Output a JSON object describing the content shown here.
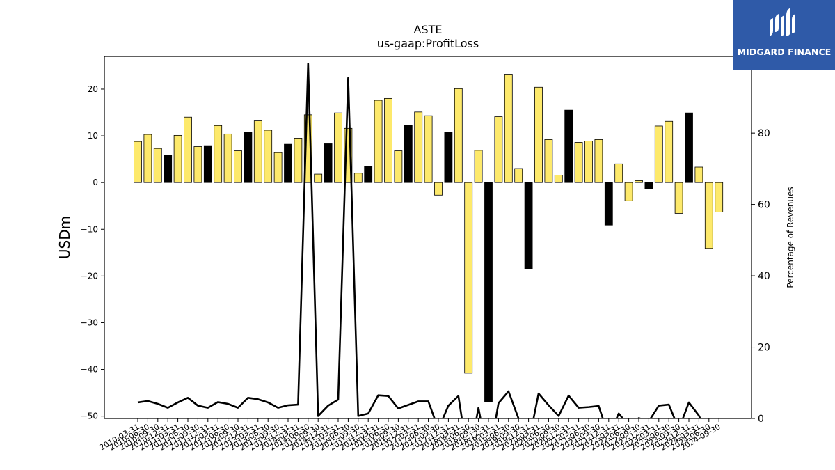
{
  "chart_data": {
    "type": "bar",
    "title": "ASTE",
    "subtitle": "us-gaap:ProfitLoss",
    "ylabel": "USDm",
    "y2label": "Percentage of Revenues",
    "ylim": [
      -50.5,
      27
    ],
    "y2lim": [
      0,
      101.5
    ],
    "yticks": [
      20,
      10,
      0,
      -10,
      -20,
      -30,
      -40,
      -50
    ],
    "y2ticks": [
      0,
      20,
      40,
      60,
      80,
      100
    ],
    "categories": [
      "2010-03-31",
      "2010-06-30",
      "2010-09-30",
      "2010-12-31",
      "2011-03-31",
      "2011-06-30",
      "2011-09-30",
      "2011-12-31",
      "2012-03-31",
      "2012-06-30",
      "2012-09-30",
      "2012-12-31",
      "2013-03-31",
      "2013-06-30",
      "2013-09-30",
      "2013-12-31",
      "2014-03-31",
      "2014-06-30",
      "2014-09-30",
      "2014-12-31",
      "2015-03-31",
      "2015-06-30",
      "2015-09-30",
      "2015-12-31",
      "2016-03-31",
      "2016-06-30",
      "2016-09-30",
      "2016-12-31",
      "2017-03-31",
      "2017-06-30",
      "2017-09-30",
      "2017-12-31",
      "2018-03-31",
      "2018-06-30",
      "2018-09-30",
      "2018-12-31",
      "2019-03-31",
      "2019-06-30",
      "2019-09-30",
      "2019-12-31",
      "2020-03-31",
      "2020-06-30",
      "2020-09-30",
      "2020-12-31",
      "2021-03-31",
      "2021-06-30",
      "2021-09-30",
      "2021-12-31",
      "2022-03-31",
      "2022-06-30",
      "2022-09-30",
      "2022-12-31",
      "2023-03-31",
      "2023-06-30",
      "2023-09-30",
      "2023-12-31",
      "2024-03-31",
      "2024-06-30",
      "2024-09-30"
    ],
    "series": [
      {
        "type": "bar",
        "values": [
          8.8,
          10.3,
          7.3,
          5.9,
          10.1,
          14.0,
          7.7,
          7.9,
          12.2,
          10.4,
          6.8,
          10.7,
          13.2,
          11.2,
          6.4,
          8.2,
          9.5,
          14.5,
          1.8,
          8.3,
          14.9,
          11.6,
          2.0,
          3.4,
          17.6,
          18.0,
          6.8,
          12.2,
          15.1,
          14.3,
          -2.7,
          10.7,
          20.1,
          -40.8,
          6.9,
          -47.0,
          14.1,
          23.2,
          3.0,
          -18.5,
          20.4,
          9.2,
          1.6,
          15.5,
          8.6,
          8.9,
          9.2,
          -9.1,
          4.0,
          -3.9,
          0.4,
          -1.3,
          12.1,
          13.1,
          -6.6,
          14.9,
          3.3,
          -14.1,
          -6.3
        ],
        "colors": [
          "#fde96b",
          "#fde96b",
          "#fde96b",
          "#000000",
          "#fde96b",
          "#fde96b",
          "#fde96b",
          "#000000",
          "#fde96b",
          "#fde96b",
          "#fde96b",
          "#000000",
          "#fde96b",
          "#fde96b",
          "#fde96b",
          "#000000",
          "#fde96b",
          "#fde96b",
          "#fde96b",
          "#000000",
          "#fde96b",
          "#fde96b",
          "#fde96b",
          "#000000",
          "#fde96b",
          "#fde96b",
          "#fde96b",
          "#000000",
          "#fde96b",
          "#fde96b",
          "#fde96b",
          "#000000",
          "#fde96b",
          "#fde96b",
          "#fde96b",
          "#000000",
          "#fde96b",
          "#fde96b",
          "#fde96b",
          "#000000",
          "#fde96b",
          "#fde96b",
          "#fde96b",
          "#000000",
          "#fde96b",
          "#fde96b",
          "#fde96b",
          "#000000",
          "#fde96b",
          "#fde96b",
          "#fde96b",
          "#000000",
          "#fde96b",
          "#fde96b",
          "#fde96b",
          "#000000",
          "#fde96b",
          "#fde96b",
          "#fde96b"
        ]
      },
      {
        "type": "line",
        "axis": "right",
        "color": "#000000",
        "values": [
          4.5,
          4.9,
          4.1,
          3.0,
          4.5,
          5.8,
          3.6,
          3.0,
          4.6,
          4.1,
          3.0,
          5.8,
          5.4,
          4.5,
          3.0,
          3.7,
          3.9,
          99.5,
          0.7,
          3.6,
          5.3,
          95.5,
          0.7,
          1.4,
          6.5,
          6.3,
          2.8,
          3.8,
          4.8,
          4.8,
          -3.0,
          3.6,
          6.3,
          -12.0,
          3.0,
          -12.0,
          4.3,
          7.6,
          0.0,
          -7.0,
          7.0,
          3.7,
          0.7,
          6.4,
          3.0,
          3.2,
          3.5,
          -5.0,
          1.4,
          -2.0,
          0.1,
          -0.8,
          3.6,
          3.9,
          -3.0,
          4.5,
          0.8,
          -5.0,
          -2.3
        ]
      }
    ],
    "grid": false,
    "legend": "none"
  },
  "logo": {
    "name": "midgard-logo-icon",
    "text": "MIDGARD FINANCE"
  }
}
